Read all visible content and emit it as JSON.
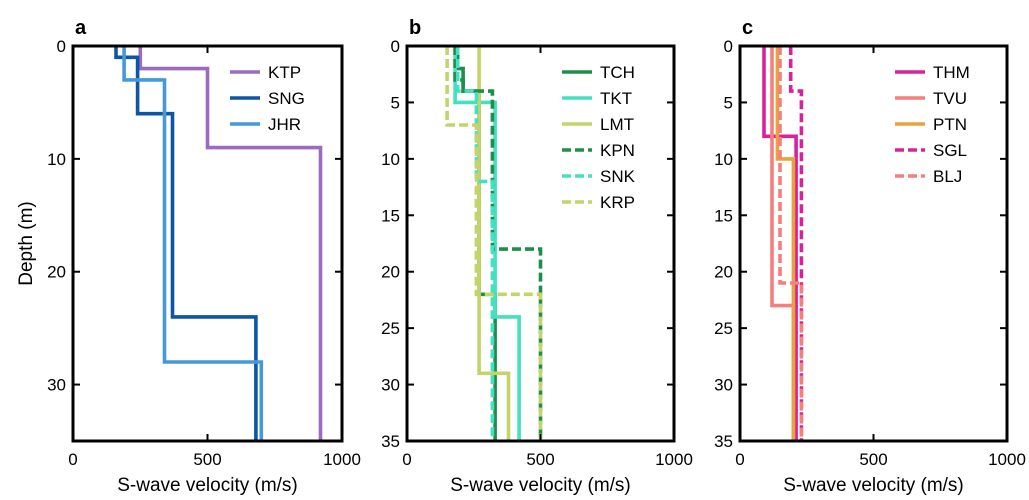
{
  "colors": {
    "KTP": "#9b6bbf",
    "SNG": "#0c56a5",
    "JHR": "#4799d6",
    "TCH": "#1e8f4a",
    "TKT": "#44e0bf",
    "LMT": "#c4d36a",
    "THM": "#d5239a",
    "TVU": "#f47f7c",
    "PTN": "#eaa23a"
  },
  "chart_data": [
    {
      "panel": "a",
      "type": "line",
      "xlabel": "S-wave velocity (m/s)",
      "ylabel": "Depth (m)",
      "xlim": [
        0,
        1000
      ],
      "ylim": [
        35,
        0
      ],
      "y_inverted": true,
      "xticks": [
        0,
        500,
        1000
      ],
      "yticks": [
        0,
        10,
        20,
        30
      ],
      "legend_position": "top-right",
      "series": [
        {
          "name": "KTP",
          "style": "solid",
          "color": "#9b6bbf",
          "layers": [
            [
              250,
              0,
              2
            ],
            [
              500,
              2,
              9
            ],
            [
              920,
              9,
              35
            ]
          ]
        },
        {
          "name": "SNG",
          "style": "solid",
          "color": "#0c56a5",
          "layers": [
            [
              160,
              0,
              1
            ],
            [
              240,
              1,
              6
            ],
            [
              370,
              6,
              24
            ],
            [
              680,
              24,
              35
            ]
          ]
        },
        {
          "name": "JHR",
          "style": "solid",
          "color": "#4799d6",
          "layers": [
            [
              190,
              0,
              3
            ],
            [
              340,
              3,
              28
            ],
            [
              700,
              28,
              35
            ]
          ]
        }
      ]
    },
    {
      "panel": "b",
      "type": "line",
      "xlabel": "S-wave velocity (m/s)",
      "ylabel": "",
      "xlim": [
        0,
        1000
      ],
      "ylim": [
        35,
        0
      ],
      "y_inverted": true,
      "xticks": [
        0,
        500,
        1000
      ],
      "yticks": [
        0,
        5,
        10,
        15,
        20,
        25,
        30,
        35
      ],
      "legend_position": "top-right",
      "series": [
        {
          "name": "TCH",
          "style": "solid",
          "color": "#1e8f4a",
          "layers": [
            [
              190,
              0,
              2
            ],
            [
              210,
              2,
              4
            ],
            [
              270,
              4,
              22
            ],
            [
              330,
              22,
              35
            ]
          ]
        },
        {
          "name": "TKT",
          "style": "solid",
          "color": "#44e0bf",
          "layers": [
            [
              180,
              0,
              5
            ],
            [
              330,
              5,
              24
            ],
            [
              420,
              24,
              35
            ]
          ]
        },
        {
          "name": "LMT",
          "style": "solid",
          "color": "#c4d36a",
          "layers": [
            [
              270,
              0,
              29
            ],
            [
              380,
              29,
              35
            ]
          ]
        },
        {
          "name": "KPN",
          "style": "dashed",
          "color": "#1e8f4a",
          "layers": [
            [
              180,
              0,
              3
            ],
            [
              210,
              3,
              4
            ],
            [
              320,
              4,
              18
            ],
            [
              500,
              18,
              35
            ]
          ]
        },
        {
          "name": "SNK",
          "style": "dashed",
          "color": "#44e0bf",
          "layers": [
            [
              190,
              0,
              4
            ],
            [
              260,
              4,
              12
            ],
            [
              320,
              12,
              35
            ]
          ]
        },
        {
          "name": "KRP",
          "style": "dashed",
          "color": "#c4d36a",
          "layers": [
            [
              150,
              0,
              7
            ],
            [
              260,
              7,
              22
            ],
            [
              500,
              22,
              35
            ]
          ]
        }
      ]
    },
    {
      "panel": "c",
      "type": "line",
      "xlabel": "S-wave velocity (m/s)",
      "ylabel": "",
      "xlim": [
        0,
        1000
      ],
      "ylim": [
        35,
        0
      ],
      "y_inverted": true,
      "xticks": [
        0,
        500,
        1000
      ],
      "yticks": [
        0,
        5,
        10,
        15,
        20,
        25,
        30,
        35
      ],
      "legend_position": "top-right",
      "series": [
        {
          "name": "THM",
          "style": "solid",
          "color": "#d5239a",
          "layers": [
            [
              90,
              0,
              8
            ],
            [
              210,
              8,
              35
            ]
          ]
        },
        {
          "name": "TVU",
          "style": "solid",
          "color": "#f47f7c",
          "layers": [
            [
              120,
              0,
              23
            ],
            [
              200,
              23,
              35
            ]
          ]
        },
        {
          "name": "PTN",
          "style": "solid",
          "color": "#eaa23a",
          "layers": [
            [
              140,
              0,
              10
            ],
            [
              200,
              10,
              35
            ]
          ]
        },
        {
          "name": "SGL",
          "style": "dashed",
          "color": "#d5239a",
          "layers": [
            [
              190,
              0,
              4
            ],
            [
              230,
              4,
              35
            ]
          ]
        },
        {
          "name": "BLJ",
          "style": "dashed",
          "color": "#f47f7c",
          "layers": [
            [
              150,
              0,
              21
            ],
            [
              230,
              21,
              35
            ]
          ]
        }
      ]
    }
  ]
}
